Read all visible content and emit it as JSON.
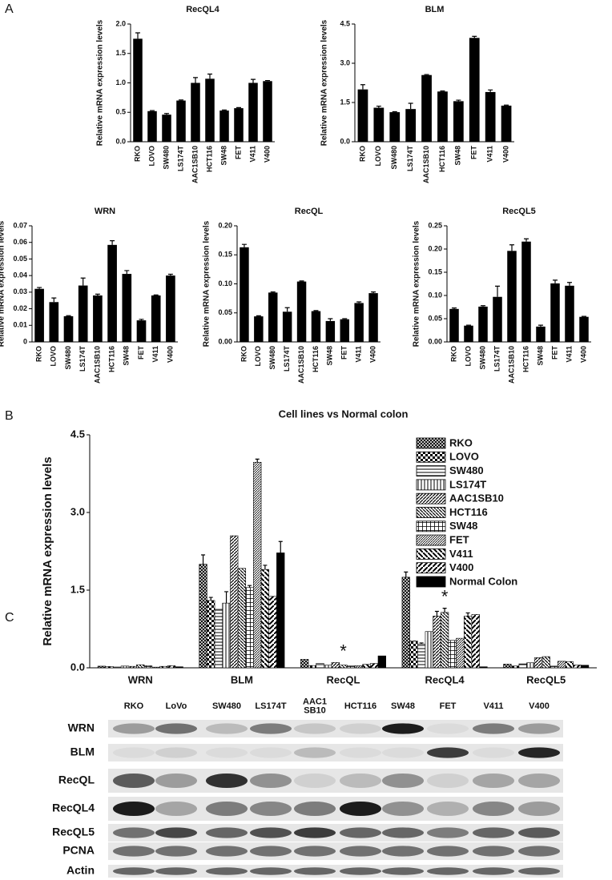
{
  "panel_labels": [
    "A",
    "B",
    "C"
  ],
  "chart_data": [
    {
      "type": "bar",
      "title": "RecQL4",
      "ylabel": "Relative mRNA expression levels",
      "categories": [
        "RKO",
        "LOVO",
        "SW480",
        "LS174T",
        "AAC1SB10",
        "HCT116",
        "SW48",
        "FET",
        "V411",
        "V400"
      ],
      "values": [
        1.75,
        0.52,
        0.46,
        0.7,
        1.0,
        1.07,
        0.53,
        0.57,
        1.0,
        1.03
      ],
      "errors": [
        0.1,
        0.01,
        0.02,
        0.01,
        0.09,
        0.08,
        0.01,
        0.01,
        0.06,
        0.01
      ],
      "color": "#000000",
      "ylim": [
        0,
        2
      ],
      "yticks": [
        {
          "value": 0,
          "label": "0.0"
        },
        0.5,
        {
          "value": 1,
          "label": "1.0"
        },
        1.5,
        {
          "value": 2,
          "label": "2.0"
        }
      ]
    },
    {
      "type": "bar",
      "title": "BLM",
      "ylabel": "Relative mRNA expression levels",
      "categories": [
        "RKO",
        "LOVO",
        "SW480",
        "LS174T",
        "AAC1SB10",
        "HCT116",
        "SW48",
        "FET",
        "V411",
        "V400"
      ],
      "values": [
        2.0,
        1.3,
        1.13,
        1.25,
        2.55,
        1.92,
        1.55,
        3.97,
        1.9,
        1.38
      ],
      "errors": [
        0.18,
        0.06,
        0.02,
        0.22,
        0.02,
        0.02,
        0.04,
        0.06,
        0.08,
        0.02
      ],
      "color": "#000000",
      "ylim": [
        0,
        4.5
      ],
      "yticks": [
        {
          "value": 0,
          "label": "0.0"
        },
        1.5,
        {
          "value": 3,
          "label": "3.0"
        },
        4.5
      ]
    },
    {
      "type": "bar",
      "title": "WRN",
      "ylabel": "Relative mRNA expression levels",
      "categories": [
        "RKO",
        "LOVO",
        "SW480",
        "LS174T",
        "AAC1SB10",
        "HCT116",
        "SW48",
        "FET",
        "V411",
        "V400"
      ],
      "values": [
        0.032,
        0.024,
        0.0155,
        0.034,
        0.028,
        0.0585,
        0.041,
        0.013,
        0.028,
        0.04
      ],
      "errors": [
        0.0008,
        0.0025,
        0.0003,
        0.0045,
        0.0008,
        0.0025,
        0.002,
        0.0006,
        0.0003,
        0.0008
      ],
      "color": "#000000",
      "ylim": [
        0,
        0.07
      ],
      "yticks": [
        0,
        0.01,
        0.02,
        0.03,
        0.04,
        0.05,
        0.06,
        0.07
      ]
    },
    {
      "type": "bar",
      "title": "RecQL",
      "ylabel": "Relative mRNA expression levels",
      "categories": [
        "RKO",
        "LOVO",
        "SW480",
        "LS174T",
        "AAC1SB10",
        "HCT116",
        "SW48",
        "FET",
        "V411",
        "V400"
      ],
      "values": [
        0.163,
        0.044,
        0.085,
        0.052,
        0.104,
        0.053,
        0.036,
        0.039,
        0.067,
        0.084
      ],
      "errors": [
        0.005,
        0.001,
        0.001,
        0.007,
        0.001,
        0.001,
        0.004,
        0.001,
        0.002,
        0.002
      ],
      "color": "#000000",
      "ylim": [
        0,
        0.2
      ],
      "yticks": [
        {
          "value": 0,
          "label": "0.00"
        },
        0.05,
        {
          "value": 0.1,
          "label": "0.10"
        },
        0.15,
        {
          "value": 0.2,
          "label": "0.20"
        }
      ]
    },
    {
      "type": "bar",
      "title": "RecQL5",
      "ylabel": "Relative mRNA expression levels",
      "categories": [
        "RKO",
        "LOVO",
        "SW480",
        "LS174T",
        "AAC1SB10",
        "HCT116",
        "SW48",
        "FET",
        "V411",
        "V400"
      ],
      "values": [
        0.071,
        0.035,
        0.076,
        0.097,
        0.196,
        0.216,
        0.033,
        0.126,
        0.121,
        0.054
      ],
      "errors": [
        0.002,
        0.001,
        0.002,
        0.023,
        0.013,
        0.006,
        0.003,
        0.007,
        0.007,
        0.001
      ],
      "color": "#000000",
      "ylim": [
        0,
        0.25
      ],
      "yticks": [
        {
          "value": 0,
          "label": "0.00"
        },
        0.05,
        {
          "value": 0.1,
          "label": "0.10"
        },
        0.15,
        {
          "value": 0.2,
          "label": "0.20"
        },
        0.25
      ]
    },
    {
      "type": "grouped_bar",
      "title": "Cell lines vs Normal colon",
      "ylabel": "Relative mRNA expression levels",
      "categories": [
        "WRN",
        "BLM",
        "RecQL",
        "RecQL4",
        "RecQL5"
      ],
      "ylim": [
        0,
        4.5
      ],
      "yticks": [
        {
          "value": 0,
          "label": "0.0"
        },
        1.5,
        {
          "value": 3,
          "label": "3.0"
        },
        4.5
      ],
      "legend": "upper right",
      "annotations": [
        {
          "text": "*",
          "category": "RecQL",
          "y": 0.3
        },
        {
          "text": "*",
          "category": "RecQL4",
          "y": 1.35
        }
      ],
      "series": [
        {
          "name": "RKO",
          "color": "#000000",
          "values": [
            0.032,
            2.0,
            0.163,
            1.75,
            0.071
          ],
          "errors": [
            0,
            0.18,
            0,
            0.1,
            0
          ]
        },
        {
          "name": "LOVO",
          "color": "#000000",
          "values": [
            0.024,
            1.3,
            0.044,
            0.52,
            0.035
          ],
          "errors": [
            0,
            0.06,
            0,
            0,
            0
          ]
        },
        {
          "name": "SW480",
          "color": "#000000",
          "values": [
            0.0155,
            1.13,
            0.085,
            0.46,
            0.076
          ],
          "errors": [
            0,
            0,
            0,
            0.02,
            0
          ]
        },
        {
          "name": "LS174T",
          "color": "#000000",
          "values": [
            0.034,
            1.25,
            0.052,
            0.7,
            0.097
          ],
          "errors": [
            0,
            0.22,
            0,
            0,
            0
          ]
        },
        {
          "name": "AAC1SB10",
          "color": "#000000",
          "values": [
            0.028,
            2.55,
            0.104,
            1.0,
            0.196
          ],
          "errors": [
            0,
            0,
            0,
            0.09,
            0
          ]
        },
        {
          "name": "HCT116",
          "color": "#000000",
          "values": [
            0.0585,
            1.92,
            0.053,
            1.07,
            0.216
          ],
          "errors": [
            0,
            0,
            0,
            0.08,
            0
          ]
        },
        {
          "name": "SW48",
          "color": "#000000",
          "values": [
            0.041,
            1.55,
            0.036,
            0.53,
            0.033
          ],
          "errors": [
            0,
            0.04,
            0,
            0,
            0
          ]
        },
        {
          "name": "FET",
          "color": "#000000",
          "values": [
            0.013,
            3.97,
            0.039,
            0.57,
            0.126
          ],
          "errors": [
            0,
            0.06,
            0,
            0,
            0
          ]
        },
        {
          "name": "V411",
          "color": "#000000",
          "values": [
            0.028,
            1.9,
            0.067,
            1.0,
            0.121
          ],
          "errors": [
            0,
            0.08,
            0,
            0.06,
            0
          ]
        },
        {
          "name": "V400",
          "color": "#000000",
          "values": [
            0.04,
            1.38,
            0.084,
            1.03,
            0.054
          ],
          "errors": [
            0,
            0,
            0,
            0,
            0
          ]
        },
        {
          "name": "Normal Colon",
          "color": "#000000",
          "values": [
            0.02,
            2.22,
            0.23,
            0.02,
            0.05
          ],
          "errors": [
            0,
            0.22,
            0,
            0,
            0
          ]
        }
      ]
    }
  ],
  "blot": {
    "columns": [
      [
        "RKO"
      ],
      [
        "LoVo"
      ],
      [
        "SW480"
      ],
      [
        "LS174T"
      ],
      [
        "AAC1",
        "SB10"
      ],
      [
        "HCT116"
      ],
      [
        "SW48"
      ],
      [
        "FET"
      ],
      [
        "V411"
      ],
      [
        "V400"
      ]
    ],
    "rows": [
      "WRN",
      "BLM",
      "RecQL",
      "RecQL4",
      "RecQL5",
      "PCNA",
      "Actin"
    ]
  }
}
